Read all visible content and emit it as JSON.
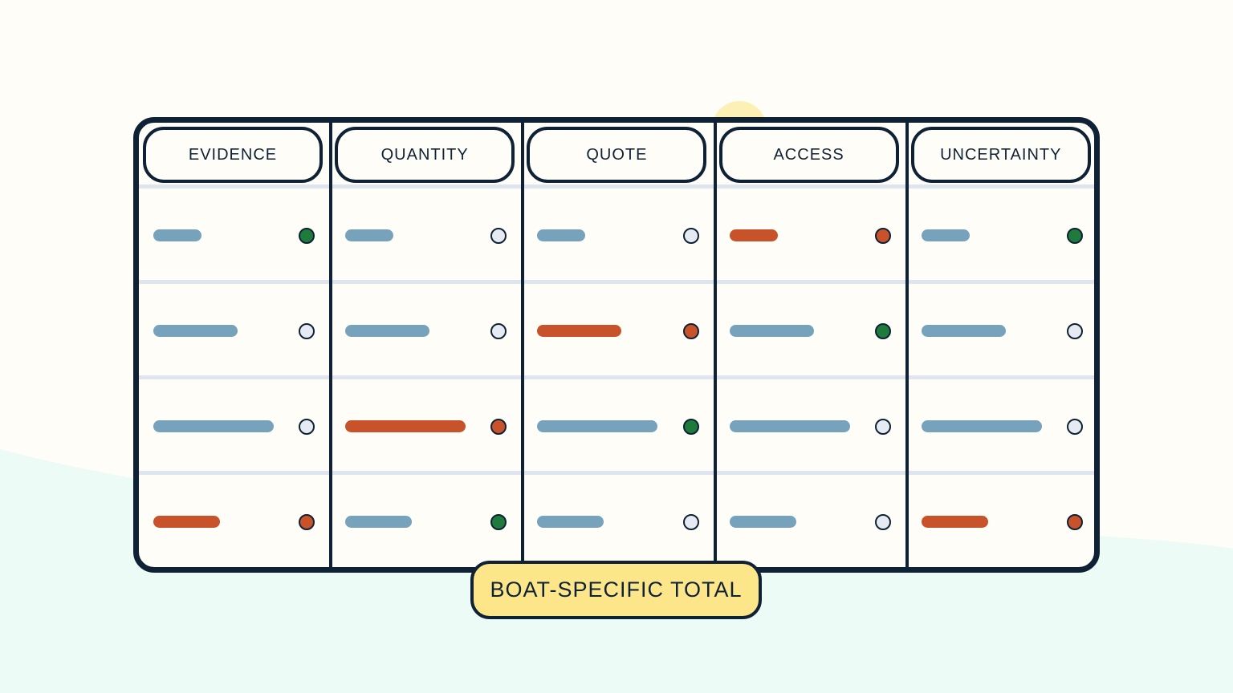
{
  "colors": {
    "background": "#fffdf7",
    "ground": "#ecfbf5",
    "sun": "#fdf0b5",
    "outline": "#0f2235",
    "divider": "#dfe5ef",
    "bar_default": "#76a2bb",
    "bar_highlight": "#c8532a",
    "dot_empty": "#e6ebf3",
    "dot_green": "#1e7b3c",
    "dot_orange": "#c8532a",
    "badge_fill": "#fde68a"
  },
  "columns": [
    {
      "label": "EVIDENCE",
      "rows": [
        {
          "bar_length": 0.4,
          "bar_color": "default",
          "dot": "green"
        },
        {
          "bar_length": 0.7,
          "bar_color": "default",
          "dot": "empty"
        },
        {
          "bar_length": 1.0,
          "bar_color": "default",
          "dot": "empty"
        },
        {
          "bar_length": 0.55,
          "bar_color": "highlight",
          "dot": "orange"
        }
      ]
    },
    {
      "label": "QUANTITY",
      "rows": [
        {
          "bar_length": 0.4,
          "bar_color": "default",
          "dot": "empty"
        },
        {
          "bar_length": 0.7,
          "bar_color": "default",
          "dot": "empty"
        },
        {
          "bar_length": 1.0,
          "bar_color": "highlight",
          "dot": "orange"
        },
        {
          "bar_length": 0.55,
          "bar_color": "default",
          "dot": "green"
        }
      ]
    },
    {
      "label": "QUOTE",
      "rows": [
        {
          "bar_length": 0.4,
          "bar_color": "default",
          "dot": "empty"
        },
        {
          "bar_length": 0.7,
          "bar_color": "highlight",
          "dot": "orange"
        },
        {
          "bar_length": 1.0,
          "bar_color": "default",
          "dot": "green"
        },
        {
          "bar_length": 0.55,
          "bar_color": "default",
          "dot": "empty"
        }
      ]
    },
    {
      "label": "ACCESS",
      "rows": [
        {
          "bar_length": 0.4,
          "bar_color": "highlight",
          "dot": "orange"
        },
        {
          "bar_length": 0.7,
          "bar_color": "default",
          "dot": "green"
        },
        {
          "bar_length": 1.0,
          "bar_color": "default",
          "dot": "empty"
        },
        {
          "bar_length": 0.55,
          "bar_color": "default",
          "dot": "empty"
        }
      ]
    },
    {
      "label": "UNCERTAINTY",
      "rows": [
        {
          "bar_length": 0.4,
          "bar_color": "default",
          "dot": "green"
        },
        {
          "bar_length": 0.7,
          "bar_color": "default",
          "dot": "empty"
        },
        {
          "bar_length": 1.0,
          "bar_color": "default",
          "dot": "empty"
        },
        {
          "bar_length": 0.55,
          "bar_color": "highlight",
          "dot": "orange"
        }
      ]
    }
  ],
  "total_label": "BOAT-SPECIFIC TOTAL"
}
